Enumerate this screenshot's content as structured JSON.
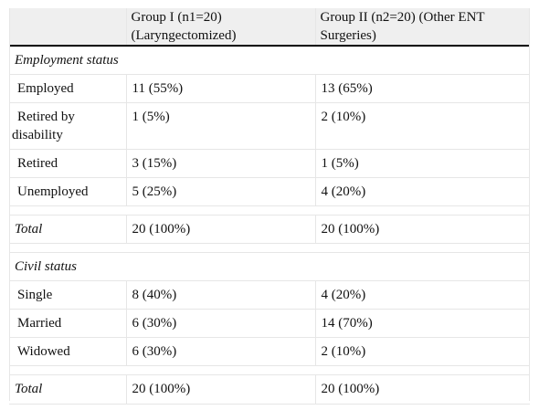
{
  "header": {
    "col1": "",
    "col2_line1": "Group I (n1=20)",
    "col2_line2": "(Laryngectomized)",
    "col3_line1": "Group II (n2=20) (Other ENT",
    "col3_line2": "Surgeries)"
  },
  "employment": {
    "title": "Employment status",
    "rows": [
      {
        "label": "Employed",
        "g1": "11 (55%)",
        "g2": "13 (65%)"
      },
      {
        "label_line1": "Retired by",
        "label_line2": "disability",
        "g1": "1 (5%)",
        "g2": "2 (10%)"
      },
      {
        "label": "Retired",
        "g1": "3 (15%)",
        "g2": "1 (5%)"
      },
      {
        "label": "Unemployed",
        "g1": "5 (25%)",
        "g2": "4 (20%)"
      }
    ],
    "total": {
      "label": "Total",
      "g1": "20 (100%)",
      "g2": "20 (100%)"
    }
  },
  "civil": {
    "title": "Civil status",
    "rows": [
      {
        "label": "Single",
        "g1": "8 (40%)",
        "g2": "4 (20%)"
      },
      {
        "label": "Married",
        "g1": "6 (30%)",
        "g2": "14 (70%)"
      },
      {
        "label": "Widowed",
        "g1": "6 (30%)",
        "g2": "2 (10%)"
      }
    ],
    "total": {
      "label": "Total",
      "g1": "20 (100%)",
      "g2": "20 (100%)"
    }
  }
}
